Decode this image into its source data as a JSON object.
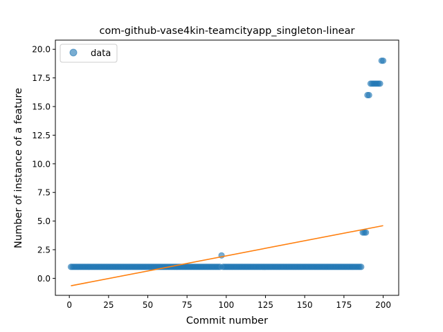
{
  "chart_data": {
    "type": "scatter",
    "title": "com-github-vase4kin-teamcityapp_singleton-linear",
    "xlabel": "Commit number",
    "ylabel": "Number of instance of a feature",
    "xlim": [
      -8.9,
      209.9
    ],
    "ylim": [
      -1.485,
      20.8
    ],
    "xticks": [
      0,
      25,
      50,
      75,
      100,
      125,
      150,
      175,
      200
    ],
    "yticks": [
      0.0,
      2.5,
      5.0,
      7.5,
      10.0,
      12.5,
      15.0,
      17.5,
      20.0
    ],
    "xtick_labels": [
      "0",
      "25",
      "50",
      "75",
      "100",
      "125",
      "150",
      "175",
      "200"
    ],
    "ytick_labels": [
      "0.0",
      "2.5",
      "5.0",
      "7.5",
      "10.0",
      "12.5",
      "15.0",
      "17.5",
      "20.0"
    ],
    "legend": {
      "position": "top-left",
      "entries": [
        "data"
      ]
    },
    "grid": false,
    "colors": {
      "data": "#1f77b4",
      "fit": "#ff7f0e"
    },
    "series": [
      {
        "name": "data",
        "kind": "scatter",
        "runs": [
          {
            "x_from": 1,
            "x_to": 96,
            "y": 1
          },
          {
            "x_from": 97,
            "x_to": 97,
            "y": 2
          },
          {
            "x_from": 98,
            "x_to": 186,
            "y": 1
          },
          {
            "x_from": 187,
            "x_to": 189,
            "y": 4
          },
          {
            "x_from": 190,
            "x_to": 191,
            "y": 16
          },
          {
            "x_from": 192,
            "x_to": 198,
            "y": 17
          },
          {
            "x_from": 199,
            "x_to": 200,
            "y": 19
          }
        ]
      },
      {
        "kind": "line",
        "x": [
          1,
          200
        ],
        "y": [
          -0.65,
          4.6
        ]
      }
    ]
  }
}
